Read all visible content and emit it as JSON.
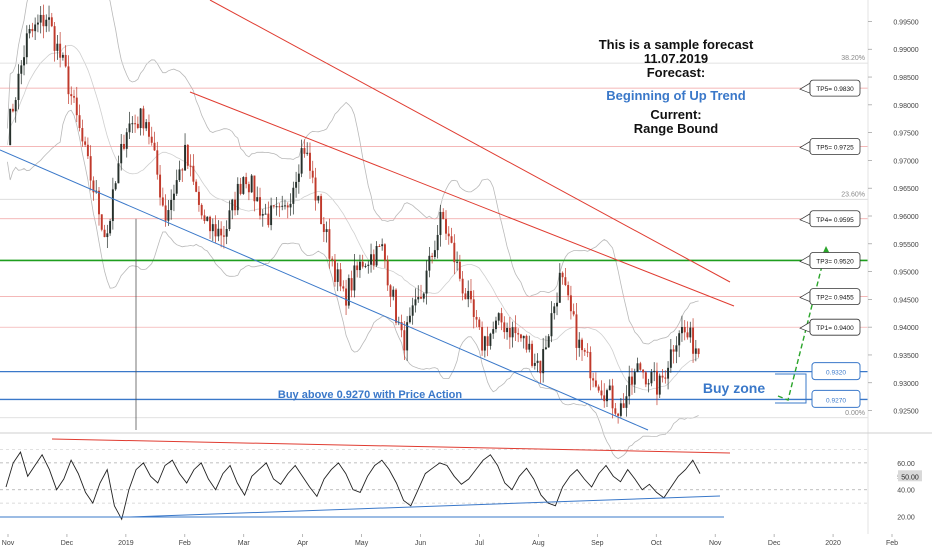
{
  "forecast_box": {
    "line1": "This is a sample forecast",
    "line2": "11.07.2019",
    "line3": "Forecast:",
    "forecast_value": "Beginning of Up Trend",
    "current_label": "Current:",
    "current_value": "Range Bound"
  },
  "annotations": {
    "buy_above": "Buy above 0.9270 with Price Action",
    "buy_zone": "Buy zone"
  },
  "colors": {
    "up_candle": "#26302b",
    "down_candle": "#c0392b",
    "resistance_line": "#e03c31",
    "support_line": "#3a78c9",
    "green_level": "#1e9e1e",
    "blue_text": "#3a78c9",
    "arrow": "#2aa52a"
  },
  "chart_data": [
    {
      "type": "line",
      "title": "",
      "x_ticks": [
        "Nov",
        "Dec",
        "2019",
        "Feb",
        "Mar",
        "Apr",
        "May",
        "Jun",
        "Jul",
        "Aug",
        "Sep",
        "Oct",
        "Nov",
        "Dec",
        "2020",
        "Feb"
      ],
      "y_ticks": [
        "0.99500",
        "0.99000",
        "0.98500",
        "0.98000",
        "0.97500",
        "0.97000",
        "0.96500",
        "0.96000",
        "0.95500",
        "0.95000",
        "0.94500",
        "0.94000",
        "0.93500",
        "0.93000",
        "0.92500"
      ],
      "ylim": [
        0.9215,
        0.9985
      ],
      "fib_levels": [
        {
          "label": "38.20%",
          "value": 0.9875
        },
        {
          "label": "23.60%",
          "value": 0.963
        },
        {
          "label": "0.00%",
          "value": 0.9237
        }
      ],
      "targets": [
        {
          "label": "TP5= 0.9830",
          "value": 0.983
        },
        {
          "label": "TP5= 0.9725",
          "value": 0.9725
        },
        {
          "label": "TP4= 0.9595",
          "value": 0.9595
        },
        {
          "label": "TP3= 0.9520",
          "value": 0.952
        },
        {
          "label": "TP2= 0.9455",
          "value": 0.9455
        },
        {
          "label": "TP1= 0.9400",
          "value": 0.94
        }
      ],
      "buy_zone_levels": [
        {
          "label": "0.9320",
          "value": 0.932
        },
        {
          "label": "0.9270",
          "value": 0.927
        }
      ],
      "price_path": [
        0.975,
        0.992,
        0.996,
        0.985,
        0.97,
        0.956,
        0.976,
        0.978,
        0.96,
        0.971,
        0.958,
        0.957,
        0.968,
        0.96,
        0.96,
        0.973,
        0.958,
        0.945,
        0.952,
        0.954,
        0.937,
        0.946,
        0.96,
        0.948,
        0.937,
        0.941,
        0.938,
        0.933,
        0.949,
        0.936,
        0.93,
        0.925,
        0.933,
        0.929,
        0.94,
        0.936
      ]
    },
    {
      "type": "line",
      "title": "",
      "y_ticks": [
        "60.00",
        "50.00",
        "40.00",
        "20.00"
      ],
      "ylim": [
        10,
        80
      ],
      "current_label": "50.00",
      "values": [
        42,
        60,
        68,
        50,
        58,
        66,
        55,
        40,
        48,
        62,
        52,
        38,
        30,
        45,
        55,
        28,
        18,
        40,
        55,
        60,
        50,
        45,
        58,
        62,
        52,
        45,
        55,
        60,
        48,
        40,
        52,
        58,
        45,
        36,
        50,
        55,
        60,
        48,
        44,
        52,
        58,
        50,
        42,
        35,
        48,
        55,
        60,
        52,
        40,
        38,
        50,
        58,
        62,
        55,
        45,
        32,
        28,
        40,
        52,
        56,
        60,
        58,
        50,
        44,
        48,
        55,
        62,
        66,
        58,
        45,
        40,
        50,
        56,
        48,
        36,
        30,
        28,
        42,
        50,
        55,
        48,
        42,
        52,
        58,
        50,
        46,
        55,
        48,
        40,
        44,
        38,
        34,
        42,
        50,
        55,
        62,
        52
      ]
    }
  ]
}
